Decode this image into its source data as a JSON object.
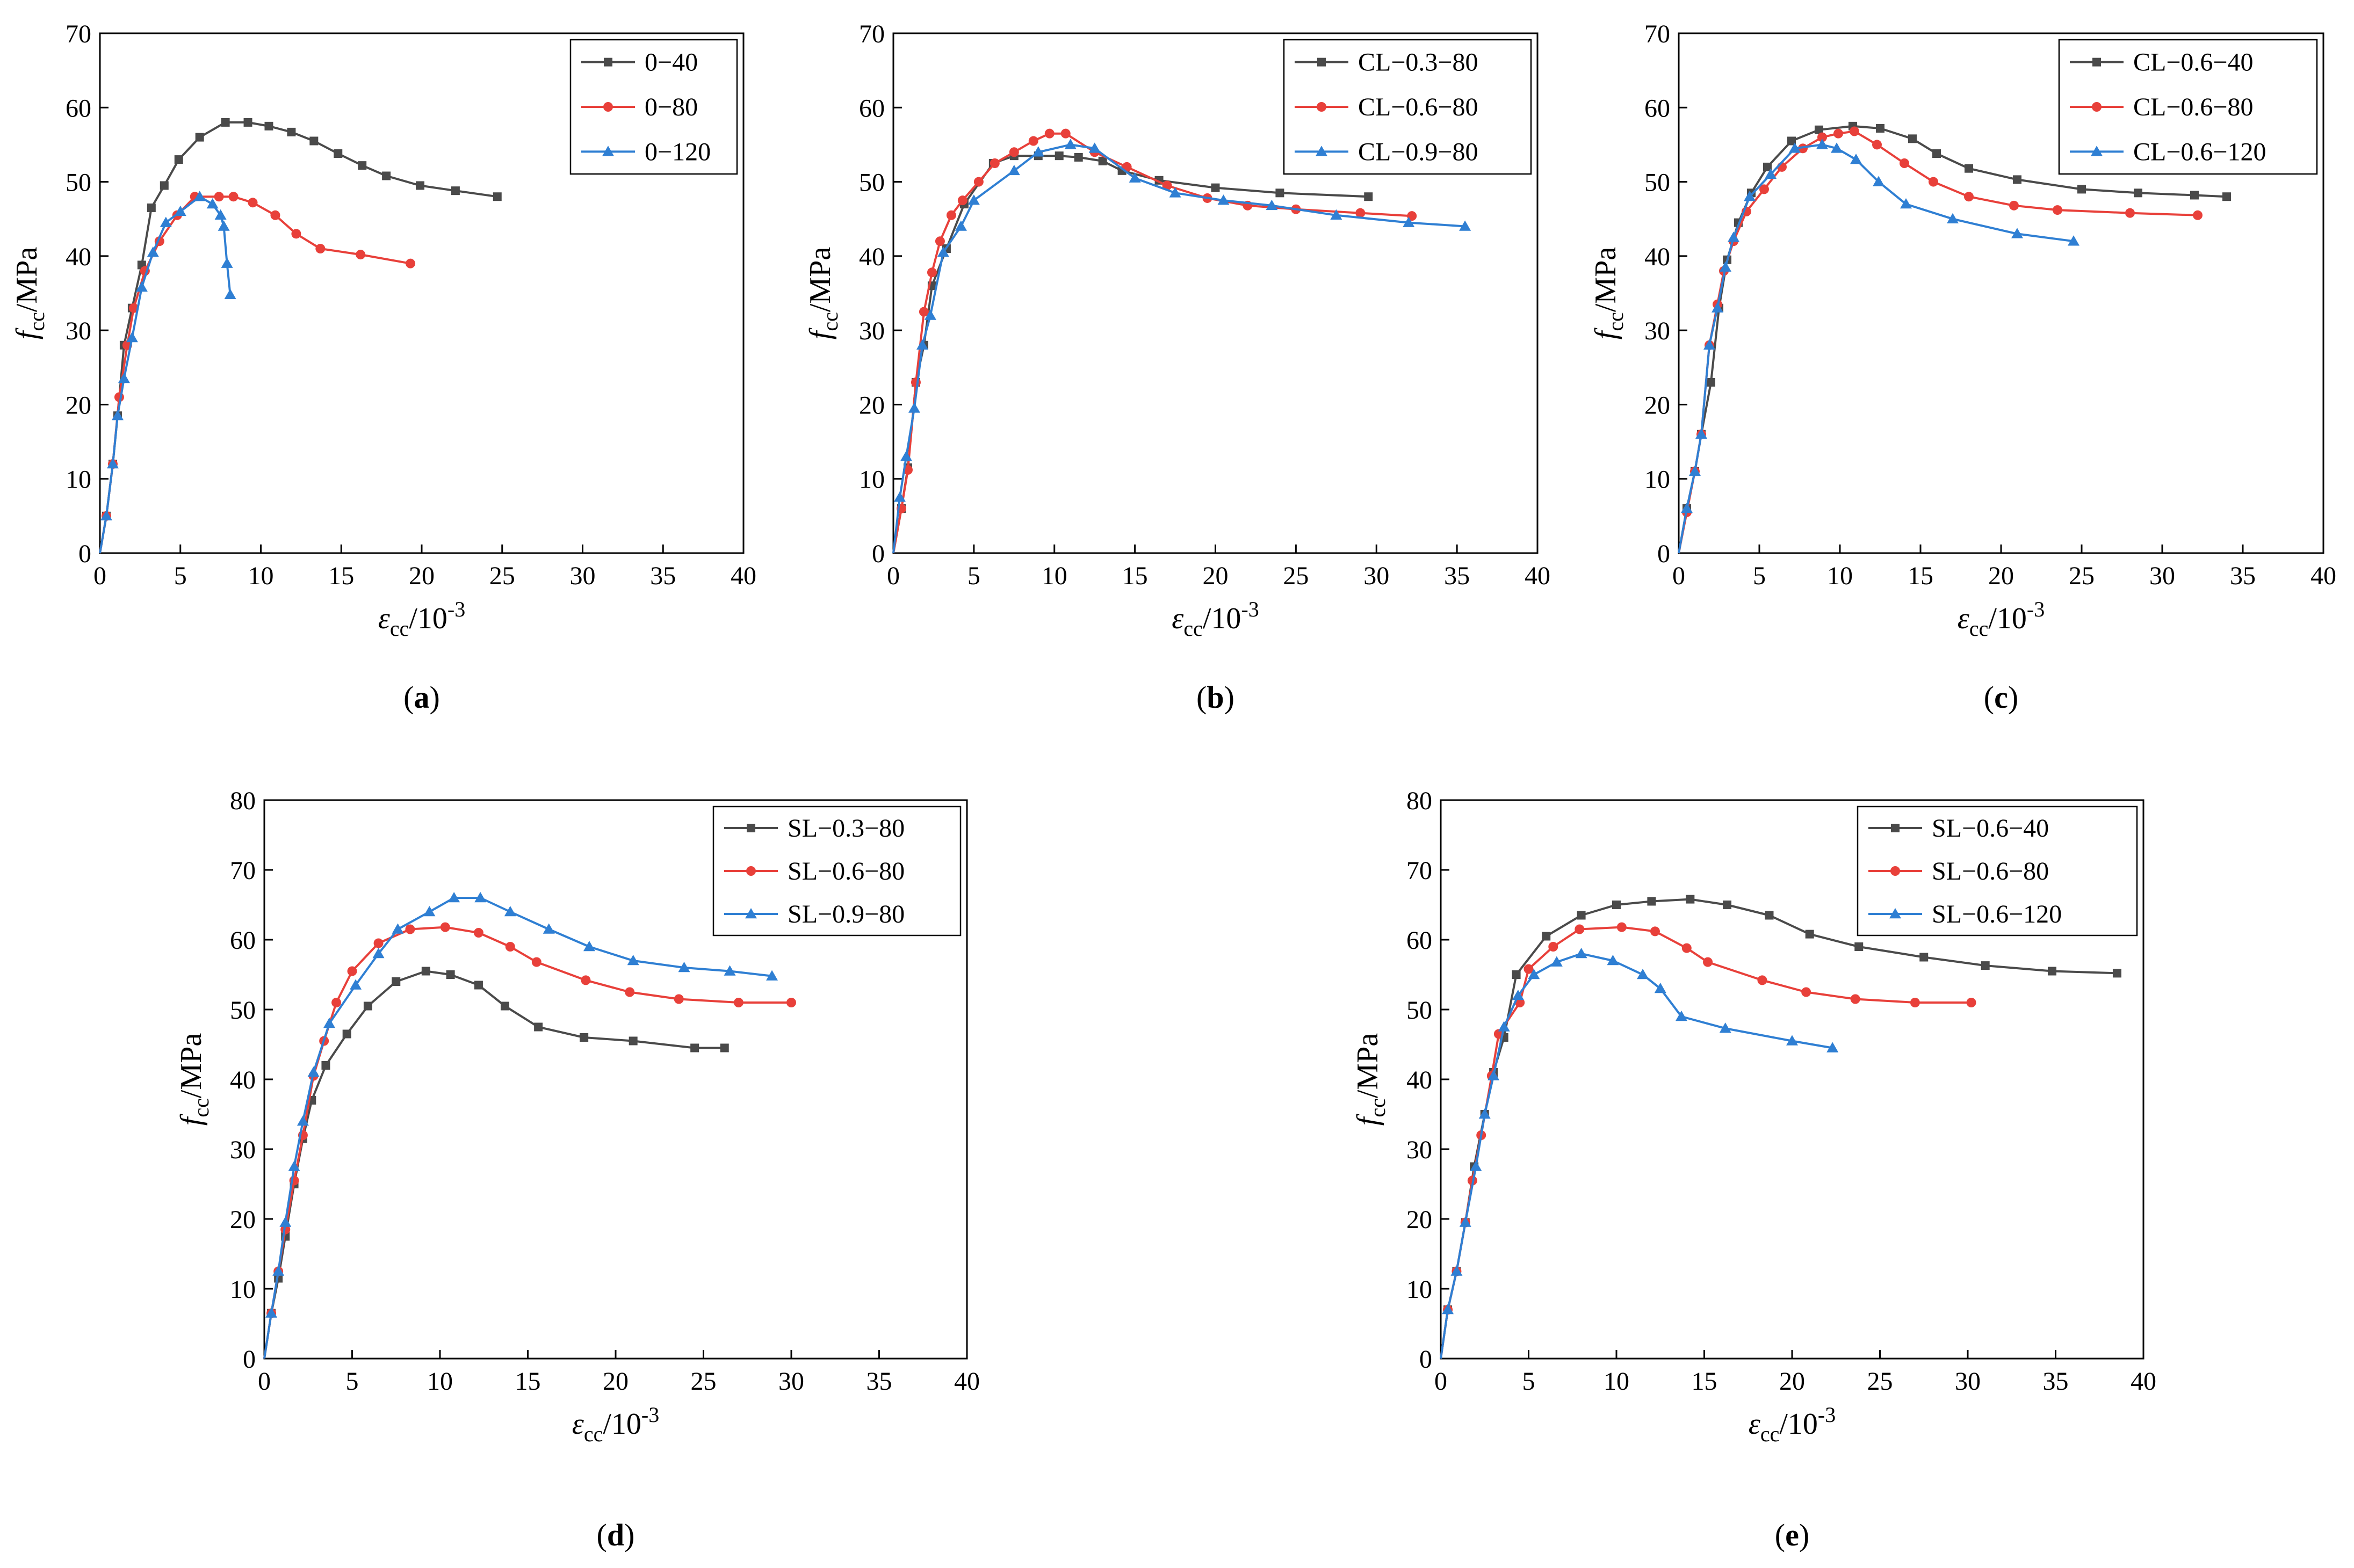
{
  "figure": {
    "colors": {
      "black": "#4a4a4a",
      "red": "#e8403a",
      "blue": "#2f7fd3",
      "axis": "#000000"
    },
    "axis_text": {
      "y_main": "f",
      "y_sub": "cc",
      "y_unit": "/MPa",
      "x_main": "ε",
      "x_sub": "cc",
      "x_unit": "/10",
      "x_exp": "-3"
    }
  },
  "chart_data": [
    {
      "type": "line",
      "panel": "a",
      "panel_label": "a",
      "xlim": [
        0,
        40
      ],
      "ylim": [
        0,
        70
      ],
      "xticks": [
        "0",
        "5",
        "10",
        "15",
        "20",
        "25",
        "30",
        "35",
        "40"
      ],
      "yticks": [
        "0",
        "10",
        "20",
        "30",
        "40",
        "50",
        "60",
        "70"
      ],
      "legend_position": "top-right",
      "series": [
        {
          "name": "0−40",
          "color": "black",
          "marker": "square",
          "x": [
            0,
            0.4,
            0.8,
            1.1,
            1.5,
            2.0,
            2.6,
            3.2,
            4.0,
            4.9,
            6.2,
            7.8,
            9.2,
            10.5,
            11.9,
            13.3,
            14.8,
            16.3,
            17.8,
            19.9,
            22.1,
            24.7
          ],
          "y": [
            0,
            5,
            12,
            18.5,
            28,
            33,
            38.8,
            46.5,
            49.5,
            53,
            56,
            58,
            58,
            57.5,
            56.7,
            55.5,
            53.8,
            52.2,
            50.8,
            49.5,
            48.8,
            48
          ]
        },
        {
          "name": "0−80",
          "color": "red",
          "marker": "circle",
          "x": [
            0,
            0.4,
            0.8,
            1.2,
            1.7,
            2.1,
            2.8,
            3.7,
            4.8,
            5.9,
            7.4,
            8.3,
            9.5,
            10.9,
            12.2,
            13.7,
            16.2,
            19.3
          ],
          "y": [
            0,
            5,
            12,
            21,
            28,
            33,
            38,
            42,
            45.5,
            48,
            48,
            48,
            47.2,
            45.5,
            43,
            41,
            40.2,
            39
          ]
        },
        {
          "name": "0−120",
          "color": "blue",
          "marker": "triangle",
          "x": [
            0,
            0.4,
            0.8,
            1.1,
            1.5,
            2.0,
            2.6,
            3.3,
            4.1,
            5.0,
            6.2,
            7.0,
            7.5,
            7.7,
            7.9,
            8.1
          ],
          "y": [
            0,
            5,
            12,
            18.5,
            23.5,
            29,
            35.8,
            40.5,
            44.5,
            46,
            48,
            47,
            45.5,
            44,
            39,
            34.8
          ]
        }
      ]
    },
    {
      "type": "line",
      "panel": "b",
      "panel_label": "b",
      "xlim": [
        0,
        40
      ],
      "ylim": [
        0,
        70
      ],
      "xticks": [
        "0",
        "5",
        "10",
        "15",
        "20",
        "25",
        "30",
        "35",
        "40"
      ],
      "yticks": [
        "0",
        "10",
        "20",
        "30",
        "40",
        "50",
        "60",
        "70"
      ],
      "legend_position": "top-right",
      "series": [
        {
          "name": "CL−0.3−80",
          "color": "black",
          "marker": "square",
          "x": [
            0,
            0.5,
            0.9,
            1.4,
            1.9,
            2.4,
            3.3,
            4.4,
            6.2,
            7.5,
            9.0,
            10.3,
            11.5,
            13.0,
            14.2,
            16.5,
            20.0,
            24.0,
            29.5
          ],
          "y": [
            0,
            6,
            11.5,
            23,
            28,
            36,
            41,
            47,
            52.5,
            53.5,
            53.5,
            53.5,
            53.3,
            52.8,
            51.5,
            50.2,
            49.2,
            48.5,
            48
          ]
        },
        {
          "name": "CL−0.6−80",
          "color": "red",
          "marker": "circle",
          "x": [
            0,
            0.5,
            0.9,
            1.4,
            1.9,
            2.4,
            2.9,
            3.6,
            4.3,
            5.3,
            6.3,
            7.5,
            8.7,
            9.7,
            10.7,
            12.5,
            14.5,
            17.0,
            19.5,
            22.0,
            25.0,
            29.0,
            32.2
          ],
          "y": [
            0,
            6,
            11.2,
            23,
            32.5,
            37.8,
            42,
            45.5,
            47.5,
            50,
            52.5,
            54,
            55.5,
            56.5,
            56.5,
            54,
            52,
            49.5,
            47.8,
            46.8,
            46.3,
            45.8,
            45.4
          ]
        },
        {
          "name": "CL−0.9−80",
          "color": "blue",
          "marker": "triangle",
          "x": [
            0,
            0.4,
            0.8,
            1.3,
            1.8,
            2.3,
            3.1,
            4.2,
            5.0,
            7.5,
            9.0,
            11.0,
            12.5,
            15.0,
            17.5,
            20.5,
            23.5,
            27.5,
            32.0,
            35.5
          ],
          "y": [
            0,
            7.5,
            13,
            19.5,
            28,
            32,
            40.5,
            44,
            47.5,
            51.5,
            54,
            55,
            54.5,
            50.5,
            48.5,
            47.5,
            46.8,
            45.5,
            44.5,
            44
          ]
        }
      ]
    },
    {
      "type": "line",
      "panel": "c",
      "panel_label": "c",
      "xlim": [
        0,
        40
      ],
      "ylim": [
        0,
        70
      ],
      "xticks": [
        "0",
        "5",
        "10",
        "15",
        "20",
        "25",
        "30",
        "35",
        "40"
      ],
      "yticks": [
        "0",
        "10",
        "20",
        "30",
        "40",
        "50",
        "60",
        "70"
      ],
      "legend_position": "top-right",
      "series": [
        {
          "name": "CL−0.6−40",
          "color": "black",
          "marker": "square",
          "x": [
            0,
            0.5,
            1.0,
            1.4,
            2.0,
            2.5,
            3.0,
            3.7,
            4.5,
            5.5,
            7.0,
            8.7,
            10.8,
            12.5,
            14.5,
            16.0,
            18.0,
            21.0,
            25.0,
            28.5,
            32.0,
            34.0
          ],
          "y": [
            0,
            6,
            11,
            16,
            23,
            33,
            39.5,
            44.5,
            48.5,
            52,
            55.5,
            57,
            57.5,
            57.2,
            55.8,
            53.8,
            51.8,
            50.3,
            49,
            48.5,
            48.2,
            48
          ]
        },
        {
          "name": "CL−0.6−80",
          "color": "red",
          "marker": "circle",
          "x": [
            0,
            0.5,
            1.0,
            1.4,
            1.9,
            2.4,
            2.8,
            3.4,
            4.2,
            5.3,
            6.4,
            7.7,
            8.9,
            9.9,
            10.9,
            12.3,
            14.0,
            15.8,
            18.0,
            20.8,
            23.5,
            28.0,
            32.2
          ],
          "y": [
            0,
            5.5,
            11,
            16,
            28,
            33.5,
            38,
            42,
            46,
            49,
            52,
            54.5,
            56,
            56.5,
            56.8,
            55,
            52.5,
            50,
            48,
            46.8,
            46.2,
            45.8,
            45.5
          ]
        },
        {
          "name": "CL−0.6−120",
          "color": "blue",
          "marker": "triangle",
          "x": [
            0,
            0.5,
            1.0,
            1.4,
            1.9,
            2.4,
            2.9,
            3.4,
            4.4,
            5.7,
            7.2,
            8.9,
            9.8,
            11.0,
            12.4,
            14.1,
            17.0,
            21.0,
            24.5
          ],
          "y": [
            0,
            6,
            11,
            16,
            28,
            33,
            38.5,
            42.5,
            48,
            51,
            54.5,
            55,
            54.5,
            53,
            50,
            47,
            45,
            43,
            42
          ]
        }
      ]
    },
    {
      "type": "line",
      "panel": "d",
      "panel_label": "d",
      "xlim": [
        0,
        40
      ],
      "ylim": [
        0,
        80
      ],
      "xticks": [
        "0",
        "5",
        "10",
        "15",
        "20",
        "25",
        "30",
        "35",
        "40"
      ],
      "yticks": [
        "0",
        "10",
        "20",
        "30",
        "40",
        "50",
        "60",
        "70",
        "80"
      ],
      "legend_position": "top-right",
      "series": [
        {
          "name": "SL−0.3−80",
          "color": "black",
          "marker": "square",
          "x": [
            0,
            0.4,
            0.8,
            1.2,
            1.7,
            2.2,
            2.7,
            3.5,
            4.7,
            5.9,
            7.5,
            9.2,
            10.6,
            12.2,
            13.7,
            15.6,
            18.2,
            21.0,
            24.5,
            26.2
          ],
          "y": [
            0,
            6.5,
            11.5,
            17.5,
            25,
            31.5,
            37,
            42,
            46.5,
            50.5,
            54,
            55.5,
            55,
            53.5,
            50.5,
            47.5,
            46,
            45.5,
            44.5,
            44.5
          ]
        },
        {
          "name": "SL−0.6−80",
          "color": "red",
          "marker": "circle",
          "x": [
            0,
            0.4,
            0.8,
            1.2,
            1.7,
            2.2,
            2.8,
            3.4,
            4.1,
            5.0,
            6.5,
            8.3,
            10.3,
            12.2,
            14.0,
            15.5,
            18.3,
            20.8,
            23.6,
            27.0,
            30.0
          ],
          "y": [
            0,
            6.5,
            12.5,
            18.5,
            25.5,
            32,
            40.5,
            45.5,
            51,
            55.5,
            59.5,
            61.5,
            61.8,
            61,
            59,
            56.8,
            54.2,
            52.5,
            51.5,
            51,
            51
          ]
        },
        {
          "name": "SL−0.9−80",
          "color": "blue",
          "marker": "triangle",
          "x": [
            0,
            0.4,
            0.8,
            1.2,
            1.7,
            2.2,
            2.8,
            3.7,
            5.2,
            6.5,
            7.6,
            9.4,
            10.8,
            12.3,
            14.0,
            16.2,
            18.5,
            21.0,
            23.9,
            26.5,
            28.9
          ],
          "y": [
            0,
            6.5,
            12.5,
            19.5,
            27.5,
            34,
            41,
            48,
            53.5,
            58,
            61.5,
            64,
            66,
            66,
            64,
            61.5,
            59,
            57,
            56,
            55.5,
            54.8
          ]
        }
      ]
    },
    {
      "type": "line",
      "panel": "e",
      "panel_label": "e",
      "xlim": [
        0,
        40
      ],
      "ylim": [
        0,
        80
      ],
      "xticks": [
        "0",
        "5",
        "10",
        "15",
        "20",
        "25",
        "30",
        "35",
        "40"
      ],
      "yticks": [
        "0",
        "10",
        "20",
        "30",
        "40",
        "50",
        "60",
        "70",
        "80"
      ],
      "legend_position": "top-right",
      "series": [
        {
          "name": "SL−0.6−40",
          "color": "black",
          "marker": "square",
          "x": [
            0,
            0.4,
            0.9,
            1.4,
            1.9,
            2.5,
            3.0,
            3.6,
            4.3,
            6.0,
            8.0,
            10.0,
            12.0,
            14.2,
            16.3,
            18.7,
            21.0,
            23.8,
            27.5,
            31.0,
            34.8,
            38.5
          ],
          "y": [
            0,
            7,
            12.5,
            19.5,
            27.5,
            35,
            41,
            46,
            55,
            60.5,
            63.5,
            65,
            65.5,
            65.8,
            65,
            63.5,
            60.8,
            59,
            57.5,
            56.3,
            55.5,
            55.2
          ]
        },
        {
          "name": "SL−0.6−80",
          "color": "red",
          "marker": "circle",
          "x": [
            0,
            0.4,
            0.9,
            1.4,
            1.8,
            2.3,
            2.9,
            3.3,
            4.5,
            5.0,
            6.4,
            7.9,
            10.3,
            12.2,
            14.0,
            15.2,
            18.3,
            20.8,
            23.6,
            27.0,
            30.2
          ],
          "y": [
            0,
            7,
            12.5,
            19.5,
            25.5,
            32,
            40.5,
            46.5,
            51,
            55.8,
            59,
            61.5,
            61.8,
            61.2,
            58.8,
            56.8,
            54.2,
            52.5,
            51.5,
            51,
            51
          ]
        },
        {
          "name": "SL−0.6−120",
          "color": "blue",
          "marker": "triangle",
          "x": [
            0,
            0.4,
            0.9,
            1.4,
            2.0,
            2.5,
            3.0,
            3.6,
            4.4,
            5.3,
            6.6,
            8.0,
            9.8,
            11.5,
            12.5,
            13.7,
            16.2,
            20.0,
            22.3
          ],
          "y": [
            0,
            7,
            12.5,
            19.5,
            27.5,
            35,
            40.5,
            47.5,
            52,
            55,
            56.8,
            58,
            57,
            55,
            53,
            49,
            47.3,
            45.5,
            44.5
          ]
        }
      ]
    }
  ]
}
